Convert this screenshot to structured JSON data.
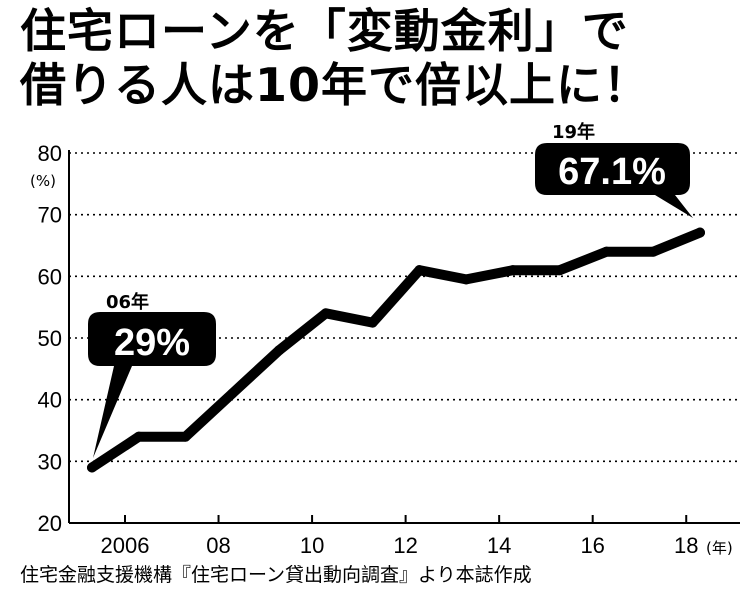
{
  "title_line1": "住宅ローンを「変動金利」で",
  "title_line2": "借りる人は10年で倍以上に！",
  "source": "住宅金融支援機構『住宅ローン貸出動向調査』より本誌作成",
  "chart_data": {
    "type": "line",
    "title": "住宅ローンを「変動金利」で借りる人は10年で倍以上に！",
    "ylabel": "(%)",
    "xlabel": "(年)",
    "ylim": [
      20,
      80
    ],
    "yticks": [
      "80",
      "70",
      "60",
      "50",
      "40",
      "30",
      "20"
    ],
    "xtick_labels": [
      "2006",
      "08",
      "10",
      "12",
      "14",
      "16",
      "18"
    ],
    "grid": "horizontal dotted",
    "x": [
      2006,
      2007,
      2008,
      2009,
      2010,
      2011,
      2012,
      2013,
      2014,
      2015,
      2016,
      2017,
      2018,
      2019
    ],
    "values": [
      29,
      34,
      34,
      41,
      48,
      54,
      52.5,
      61,
      59.5,
      61,
      61,
      64,
      64,
      67.1
    ],
    "annotations": [
      {
        "label": "06年",
        "value_text": "29%"
      },
      {
        "label": "19年",
        "value_text": "67.1%"
      }
    ]
  }
}
